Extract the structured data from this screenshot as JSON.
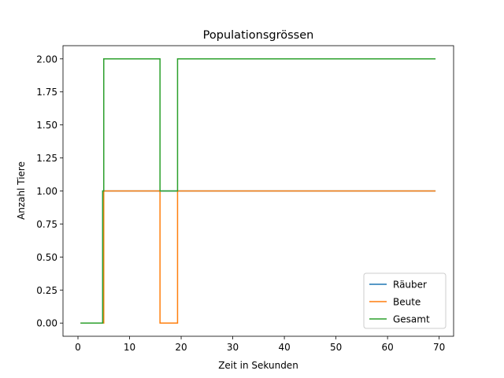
{
  "chart_data": {
    "type": "line",
    "step": true,
    "title": "Populationsgrössen",
    "xlabel": "Zeit in Sekunden",
    "ylabel": "Anzahl Tiere",
    "xlim": [
      -2.9,
      72.8
    ],
    "ylim": [
      -0.1,
      2.1
    ],
    "x_ticks": [
      0,
      10,
      20,
      30,
      40,
      50,
      60,
      70
    ],
    "x_tick_labels": [
      "0",
      "10",
      "20",
      "30",
      "40",
      "50",
      "60",
      "70"
    ],
    "y_ticks": [
      0,
      0.25,
      0.5,
      0.75,
      1.0,
      1.25,
      1.5,
      1.75,
      2.0
    ],
    "y_tick_labels": [
      "0.00",
      "0.25",
      "0.50",
      "0.75",
      "1.00",
      "1.25",
      "1.50",
      "1.75",
      "2.00"
    ],
    "grid": false,
    "legend_position": "lower-right",
    "series": [
      {
        "name": "Räuber",
        "color": "#1f77b4",
        "x": [
          0.5,
          4.8,
          4.8,
          69.3
        ],
        "y": [
          0,
          0,
          1,
          1
        ]
      },
      {
        "name": "Beute",
        "color": "#ff7f0e",
        "x": [
          0.5,
          5.0,
          5.0,
          15.9,
          15.9,
          19.3,
          19.3,
          69.3
        ],
        "y": [
          0,
          0,
          1,
          1,
          0,
          0,
          1,
          1
        ]
      },
      {
        "name": "Gesamt",
        "color": "#2ca02c",
        "x": [
          0.5,
          4.8,
          4.8,
          5.0,
          5.0,
          15.9,
          15.9,
          19.3,
          19.3,
          69.3
        ],
        "y": [
          0,
          0,
          1,
          1,
          2,
          2,
          1,
          1,
          2,
          2
        ]
      }
    ]
  }
}
